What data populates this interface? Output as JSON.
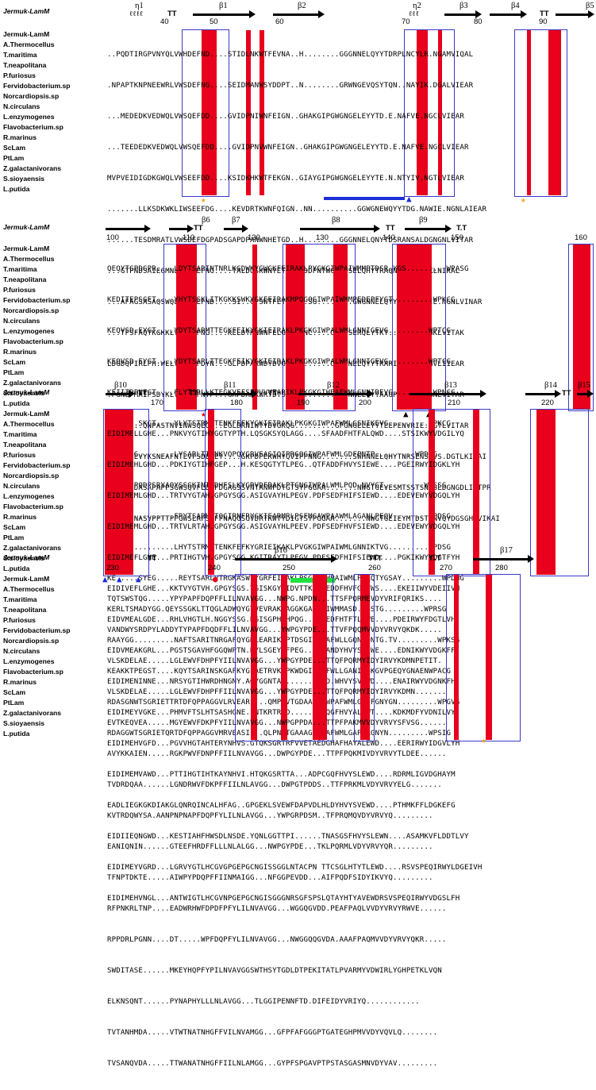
{
  "title": "Multiple sequence alignment - Jermuk-LamM",
  "reference": "Jermuk-LamM",
  "species": [
    "Jermuk-LamM",
    "A.Thermocellus",
    "T.maritima",
    "T.neapolitana",
    "P.furiosus",
    "Fervidobacterium.sp",
    "Norcardiopsis.sp",
    "N.circulans",
    "L.enzymogenes",
    "Flavobacterium.sp",
    "R.marinus",
    "ScLam",
    "PtLam",
    "Z.galactanivorans",
    "S.sioyaensis",
    "L.putida"
  ],
  "blocks": [
    {
      "ss_labels": [
        "η1",
        "β1",
        "β2",
        "η2",
        "β3",
        "β4",
        "β5"
      ],
      "tt_labels": [
        "TT",
        "TT"
      ],
      "numbers": [
        "40",
        "50",
        "60",
        "70",
        "80",
        "90"
      ],
      "rows": [
        "..PQDTIRGPVNYQLVWHDEFND....STIDLNKWTFEVNA..H........GGGNNELQYYTDRPLNCYLR.NGAMVIQAL",
        ".NPAPTKNPNEEWRLVWSDEFNG....SEIDMANWSYDDPT..N........GRWNGEVQSYTQN..NAYIK.DGALVIEAR",
        "...MEDEDKVEDWQLVWSQEFDD....GVIDPNIWNFEIGN..GHAKGIPGWGNGELEYYTD.E.NAFVE.NGCLVIEAR",
        "...TEEDEDKVEDWQLVWSQEFDD....GVIDPNVWNFEIGN..GHAKGIPGWGNGELEYYTD.E.NAFVE.NGCLVIEAR",
        "MVPVEIDIGDKGWQLVWSEEFDD....KSIDKHKWTFEKGN..GIAYGIPGWGNGELEYYTE.N.NTYIV.NGTLVIEAR",
        ".......LLKSDKWKLIWSEEFDG....KEVDRTKWNFQIGN..NN..........GGWGNEWQYYTDG.NAWIE.NGNLAIEAR",
        "......TESDMRATLVWSDEFDGPADSGAPDPANWNHETGD..H........GGGNNELQNYTDSRANSALDGNGNLVITAR",
        "...GTPNDSAIEGMNLIWQDEFNG....TALDQSKWNYETGYLNDDPNTWGWGNSELQHYTRAQNVFVQ.DGKLNIKAL",
        "...AFAGSASAQSWQLVWSDEFND....SI..GPSWTFETGNG..SG........GWGNNELQYYRR..NAKIE.NGNLVINAR",
        "...TFSFAQTKGKKLVWEEHFNG....KELDTKNWNFELGDGCPNC....GGGNSERQLYTKT..NHKME.NGKLVITAK",
        "LDGDQPIRLPH.WELVWSDEFDYN...GLPDPAKWDYDVGGH........GWGNNELQYYTRARIENARVGGGVLIIEAR",
        ".PGNEPMAIPSDYKLVWADEFNTP...GAPDAAKWRYDTSRNKE.......GWYNNELQYYAAGPENVRVENGNLVITAR",
        "........QNPASTNVINWSQEQ...EGLDRNIWTYDVGKQG.........GFGNGELEYYTEEPENVRIE.DGTLVITAR",
        "......EVYKSNEAFNTLVFSDEFEY....GKPDPEKWHYQVIPPNNG.......SWHNNELQHYTNRSENSFVS.DGTLKIRAI",
        "......DASAPAPPSGWSQVFLDDFDGAGSSVNTANWFDTGTSYPGGAA.......NWGTGEVESMTSSTSNVSLDGNGDLIITPR",
        "......NASVPPTTPPGWSLAFSDFFNAQGSGVDRTKWTYDIGTSYPGGAA.......NWGTGEIEYMTDSTNNVQYDGSGHLVIKAI"
      ],
      "markers": [
        "★",
        "★",
        "▲",
        "★"
      ]
    },
    {
      "ss_labels": [
        "β6",
        "β7",
        "β8",
        "β9"
      ],
      "tt_labels": [
        "TT",
        "TT",
        "T.T"
      ],
      "numbers": [
        "100",
        "110",
        "120",
        "130",
        "140",
        "150",
        "160"
      ],
      "rows": [
        "QEQYTGPDGPR....LDYTSARINTNRLKGDWKYGWGKFEIRAKLPYGKGIWPAIWMMPTDSR.YGS.........WPASG",
        "KEDITEPSGET....YHYTSSKLITKGKKSWKYGKFEIRAKMPQGQGIWPAIWMMPEDEPFYGT.........WPKCG",
        "KEQVSD.EYGT....YDYTSARMTTEGKFEIKYGKIEIRAKLPKGKGIWPALWMLGNNIGEVG.........WPTCG",
        "KEQVSD.EYGT....YDYTSARLTTEGKFEIKYGKIEIRAKLPKGKGIWPALWMLGNNIGEVG.........WPTCG",
        "KEIITDPNEGT....FLYTSRLLKTEGKVEFSPPVVVEARIKLPKGKGIWPAFWMLGNNIREVG.........WPNCG",
        "KEVVKD.SKGT....YLYTSTRMVTENKFEFKYGKIEIRAKLPKGKGIWPAFWMLGSNIKEVG.........WPKCG",
        "KEQADGG........LYSARLTTQNKVQPQYGRVEASIQIPRGQGIWPAFWMLGDFPNTP.........WPDSG",
        "NEPKSFPQDPSRYAQYSSGKINTKDHFSLKYGRVDFRAKLPTGNGIWPALWMLPQD.NVYGT.........WASSG",
        "RQDFNG.........FRYTSARMKTQGIRNFRYGKIEARMRLPSFMGAWPAAWMLAGANLPEQV........WPDSG",
        "KE.............LHYTSTRMTTENKFEFKYGRIEIKAKLPVGKGIWPAIWMLGNNIKTVG.........WPDSG",
        "KE.....SYEG.....REYTSARLVTRGKASWTYGRFEIRAKLPSGRGTWPAIWMLPDRQTYGSAY.........WPDNG",
        "KERLTSMADYGG.QEYSSGKLTTQGLADWQYGYVEVRAKLAGGKGAWPAIWMMASD..GSTG.........WPRSG",
        "RAAYGG.........NAFTSARITNRGAFQYGDLEARIKVPTDSGIWPAAFWLLGQNWQNTG.TV.........WPKSG",
        "KEAKKTPEGST....KQYTSARINSKGAFKYGLAETRVKLPKWDGIWPAFWLLGANIEGKGVPGEQYGNAENWPACG",
        "RDASGNWTSGRIETTRTDFQPPAGGVLRVEARL...QMPNVTGDAAAGYWPAFWMLGAPFGNYGN.........WPGVG",
        "RDAGGWTSGRIETQRTDFQPPAGGVMRVEASI...QLPNVTGAAAGYWPAFWMLGAPFRGNYN.........WPSIG"
      ],
      "markers": [
        "★",
        "▲",
        "▲"
      ]
    },
    {
      "ss_labels": [
        "β10",
        "β11",
        "β12",
        "β13",
        "β14",
        "β15"
      ],
      "tt_labels": [
        "TT",
        "TT",
        "TT",
        "TT"
      ],
      "numbers": [
        "170",
        "180",
        "190",
        "200",
        "210",
        "220"
      ],
      "rows": [
        "EIDIMELLGHE...PNKVYGTIHYGGTYPTH.LQSGKSYQLAGG....SFAADFHTFALQWD....STSIKWYVDGILYQ",
        "EIDIMEHLGHD...PDKIYGTIHFGEP...H.KESQGTYTLPEG..QTFADDFHVYSIEWE....PGEIRWYIDGKLYH",
        "EIDIMEMLGHD...TRTVYGTAH.GPGYSGG.ASIGVAYHLPEGV.PDFSEDFHIFSIEWD....EDEVEWYVDGQLYH",
        "EIDIMEMLGHD...TRTVLRTAH.GPGYSGG.ASIGVAYHLPEEV.PDFSEDFHVFSIEWD....EDEVEWYVDGQLYH",
        "EIDIMEFLGHE...PRTIHGTVH.GPGYSGG.KGITRAYTLPEGV.PDFSEDFHIFSIEWD....PGKIKWYVDGTFYH",
        "EIDIVEFLGHE...KKTVYGTVH.GPGYSGS.YGISKGYMIDVTTKPSVEDDFHVFGIVWS....EKEIIWYVDEIIVH",
        "EIDVMEALGDE...RHLVHGTLH.NGGYSSG.RGISGPHMHPQG...WSEDFHTFTLEWE....PDEIRWYFDGTLVH",
        "EIDVMEAKGRL...PGSTSGAVHFGGQWPTN.RYLSGEYHFPEG..QTFANDYHVYSVEWE....EDNIKWYVDGKFF",
        "EIDIMENINNE...NRSYGTIHWRDHNGNY.AQYGGNTAV......SVAD.WHVYSVEWD....ENAIRWYVDGNKFH",
        "EIDIMEYVGKE...PHMVFTSLHTSASHGNE.INTKRTRID.....TIEQGFHVYALDWT....KDKMDFYVDNILVY",
        "EIDIMEHVGFD...PGVVHGTAHTERYNHVS.GTQKSGRTRFVVETAEDGHAFHAYALEWD....EERIRWYIDGVLYH",
        "EIDIMEMVAWD...PTTIHGTIHTKAYNHVI.HTQKGSRTTA...ADPCGQFHVYSLEWD....RDRMLIGVDGHAYM",
        "EADLIEGKGKDIAKGLQNRQINCALHFAG..GPGEKLSVEWFDAPVDLHLDYHVYSVEWD....PTHMKFFLDGKEFG",
        "EIDIIEQNGWD...KESTIAHFHWSDLNSDE.YQNLGGTTPI......TNASGSFHVYSLEWN....ASAMKVFLDDTLVY",
        "EIDIMEYVGRD...LGRVYGTLHCGVGPGEPGCNGISSGGLNTACPN TTCSGLHTYTLEWD....RSVSPEQIRWYLDGEIVH",
        "EIDIMEHVNGL...ANTWIGTLHCGVNPGEPGCNGISGGGNRSGFSPSLQTAYHTYAVEWDRSVSPEQIRWYVDGSLFH"
      ],
      "markers": [
        "▲",
        "▲",
        "▲",
        "●"
      ]
    },
    {
      "ss_labels": [
        "β16",
        "β17"
      ],
      "tt_labels": [
        "TT",
        "TTT",
        "T..T"
      ],
      "numbers": [
        "230",
        "240",
        "250",
        "260",
        "270",
        "280"
      ],
      "rows": [
        "TQTSWSTQG.....YPYPAPFDQPFFLILNVAVGG...NWPG.NPDN...TTSFPQRMEVDYVRIFQRIKS....",
        "VANDWYSRDPYLADDYTYPAPFDQDFFLILNVAVGG...YWPGYPDE...TTVFPQQMVVDYVRVYQKDK.....",
        "VLSKDELAE.....LGLEWVFDHPFYIILNVAVGG...YWPGYPDE...TTQFPQRMYIDYIRVYKDMNPETIT.",
        "VLSKDELAE.....LGLEWVFDHPFFIILNVAVGG...YWPGYPDE...TTQFPQRMYIDYIRVYKDMN.......",
        "EVTKEQVEA.....MGYEWVFDKPFYIILNVAVGG...NWPGPPDA...TTPFPAKMVVDYVRVYSFVSG......",
        "AVYKKAIEN.....RGKPWVFDNPFFIILNVAVGG...DWPGYPDE...TTPFPQKMIVDYVRVYTLDEE......",
        "TVDRDQAA......LGNDRWVFDKPFFIILNLAVGG...DWPGTPDDS..TTFPRKMLVDYVRVYELG.......",
        "KVTRDQWYSA.AANPNPNAPFDQPFYLILNLAVGG...YWPGRPDSM..TFPRQMQVDYVRVYQ.........",
        "EANIQNIN......GTEEFHRDFFLLLNLALGG...NWPGYPDE...TKLPQRMLVDYVRVYQR.........",
        "TFNPTDKTE.....AIWPYPDQPFFIINMAIGG...NFGGPEVDD...AIFPQDFSIDYIKVYQ.........",
        "RFPNKRLTNP....EADWRHWFDPDFPFYLILNVAVGG...WGGQGVDD.PEAFPAQLVVDYVRVYRWVE......",
        "RPPDRLPGNN....DT.....WPFDQPFYLILNVAVGG...NWGGQQGVDA.AAAFPAQMVVDYVRVYQKR.....",
        "SWDITASE......MKEYHQPFYPILNVAVGGSWTHSYTGDLDTPEKITATLPVARMYVDWIRLYGHPETKLVQN",
        "ELKNSQNT......PYNAPHYLLLNLAVGG...TLGGIPENNFTD.DIFEIDYVRIYQ............",
        "TVTANHMDA.....VTWTNATNHGFFVILNVAMGG...GFPFAFGGGPTGATEGHPMVVDYVQVLQ........",
        "TVSANQVDA.....TTWANATNHGFFIILNLAMGG...GYPFSPGAVPTPSTASGASMNVDYVAV........."
      ],
      "markers": [
        "★"
      ]
    }
  ]
}
